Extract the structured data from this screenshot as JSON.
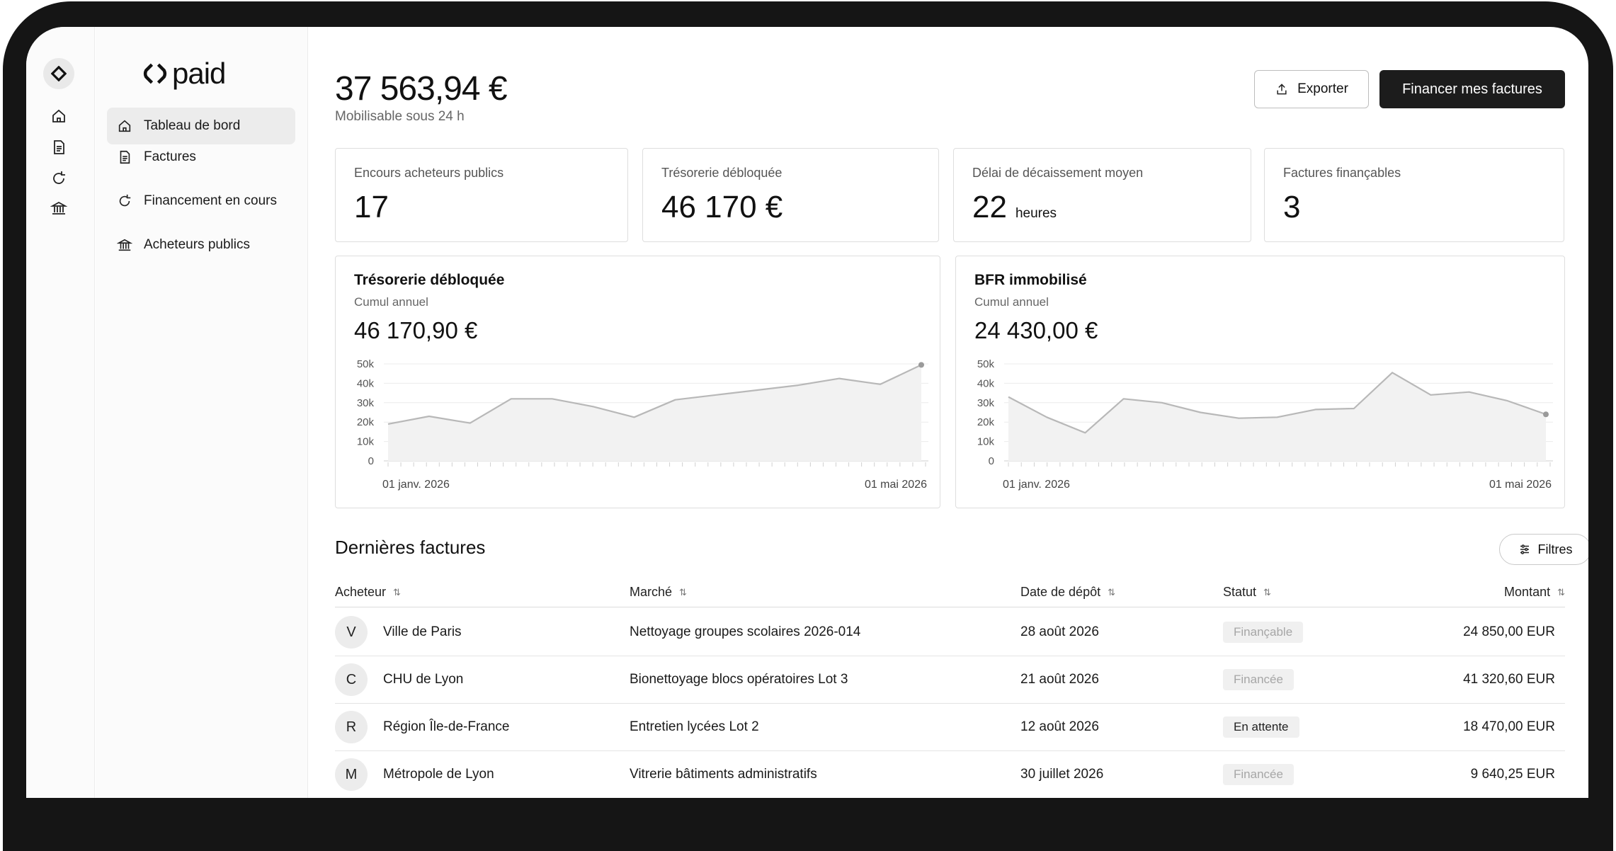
{
  "brand": {
    "name": "paid"
  },
  "nav": {
    "items": [
      {
        "label": "Tableau de bord",
        "icon": "home-icon",
        "active": true
      },
      {
        "label": "Factures",
        "icon": "document-icon",
        "active": false
      },
      {
        "label": "Financement en cours",
        "icon": "refresh-icon",
        "active": false
      },
      {
        "label": "Acheteurs publics",
        "icon": "bank-icon",
        "active": false
      }
    ]
  },
  "header": {
    "balance": "37 563,94 €",
    "balance_sub": "Mobilisable sous 24 h",
    "export_label": "Exporter",
    "primary_label": "Financer mes factures"
  },
  "stats": [
    {
      "label": "Encours acheteurs publics",
      "value": "17",
      "unit": ""
    },
    {
      "label": "Trésorerie débloquée",
      "value": "46 170 €",
      "unit": ""
    },
    {
      "label": "Délai de décaissement moyen",
      "value": "22",
      "unit": "heures"
    },
    {
      "label": "Factures finançables",
      "value": "3",
      "unit": ""
    }
  ],
  "charts": [
    {
      "title": "Trésorerie débloquée",
      "subtitle": "Cumul annuel",
      "total": "46 170,90 €"
    },
    {
      "title": "BFR immobilisé",
      "subtitle": "Cumul annuel",
      "total": "24 430,00 €"
    }
  ],
  "chart_data": [
    {
      "type": "area",
      "title": "Trésorerie débloquée",
      "ylim": [
        0,
        50000
      ],
      "y_ticks": [
        "0",
        "10k",
        "20k",
        "30k",
        "40k",
        "50k"
      ],
      "x_labels": [
        "01 janv. 2026",
        "01 mai 2026"
      ],
      "series": [
        {
          "values": [
            19000,
            23000,
            19500,
            32000,
            32000,
            28000,
            22500,
            31500,
            34000,
            36500,
            39000,
            42500,
            39500,
            49500
          ]
        }
      ],
      "grid": true
    },
    {
      "type": "area",
      "title": "BFR immobilisé",
      "ylim": [
        0,
        50000
      ],
      "y_ticks": [
        "0",
        "10k",
        "20k",
        "30k",
        "40k",
        "50k"
      ],
      "x_labels": [
        "01 janv. 2026",
        "01 mai 2026"
      ],
      "series": [
        {
          "values": [
            33000,
            22500,
            14500,
            32000,
            30000,
            25000,
            22000,
            22500,
            26500,
            27000,
            45500,
            34000,
            35500,
            31000,
            24000
          ]
        }
      ],
      "grid": true
    }
  ],
  "invoices": {
    "title": "Dernières factures",
    "filter_label": "Filtres",
    "columns": [
      "Acheteur",
      "Marché",
      "Date de dépôt",
      "Statut",
      "Montant"
    ],
    "rows": [
      {
        "initial": "V",
        "buyer": "Ville de Paris",
        "market": "Nettoyage groupes scolaires 2026-014",
        "date": "28 août 2026",
        "status": "Finançable",
        "status_tone": "muted",
        "amount": "24 850,00 EUR"
      },
      {
        "initial": "C",
        "buyer": "CHU de Lyon",
        "market": "Bionettoyage blocs opératoires Lot 3",
        "date": "21 août 2026",
        "status": "Financée",
        "status_tone": "muted",
        "amount": "41 320,60 EUR"
      },
      {
        "initial": "R",
        "buyer": "Région Île-de-France",
        "market": "Entretien lycées Lot 2",
        "date": "12 août 2026",
        "status": "En attente",
        "status_tone": "strong",
        "amount": "18 470,00 EUR"
      },
      {
        "initial": "M",
        "buyer": "Métropole de Lyon",
        "market": "Vitrerie bâtiments administratifs",
        "date": "30 juillet 2026",
        "status": "Financée",
        "status_tone": "muted",
        "amount": "9 640,25 EUR"
      }
    ]
  },
  "colors": {
    "primary": "#1c1c1c",
    "border": "#dedede",
    "line": "#b8b8b8",
    "fill": "#f2f2f2"
  }
}
